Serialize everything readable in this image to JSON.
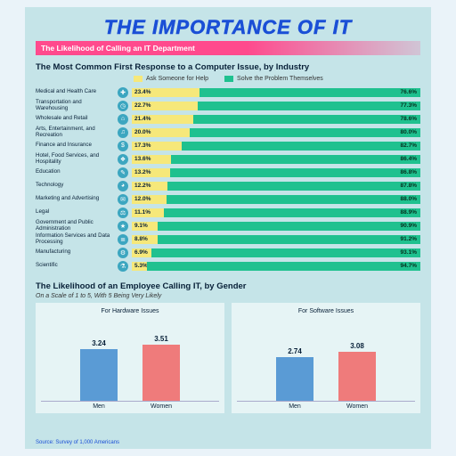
{
  "title": "THE IMPORTANCE OF IT",
  "subtitle": "The Likelihood of Calling an IT Department",
  "colors": {
    "page_bg": "#eaf3f9",
    "panel_bg": "#c5e4e8",
    "title": "#1a4fd6",
    "subtitle_band": "#ff4a8d",
    "ask_color": "#f6e87a",
    "solve_color": "#1fc18f",
    "icon_bg": "#3ca6c0",
    "men_bar": "#5a9bd5",
    "women_bar": "#ef7b7b",
    "gender_panel_bg": "#e6f4f5",
    "source": "#1a4fd6"
  },
  "section1": {
    "title": "The Most Common First Response to a Computer Issue, by Industry",
    "legend": {
      "ask": "Ask Someone for Help",
      "solve": "Solve the Problem Themselves"
    },
    "rows": [
      {
        "label": "Medical and Health Care",
        "icon": "✚",
        "ask": 23.4,
        "solve": 76.6
      },
      {
        "label": "Transportation and Warehousing",
        "icon": "◷",
        "ask": 22.7,
        "solve": 77.3
      },
      {
        "label": "Wholesale and Retail",
        "icon": "⌂",
        "ask": 21.4,
        "solve": 78.6
      },
      {
        "label": "Arts, Entertainment, and Recreation",
        "icon": "♫",
        "ask": 20.0,
        "solve": 80.0
      },
      {
        "label": "Finance and Insurance",
        "icon": "$",
        "ask": 17.3,
        "solve": 82.7
      },
      {
        "label": "Hotel, Food Services, and Hospitality",
        "icon": "❖",
        "ask": 13.6,
        "solve": 86.4
      },
      {
        "label": "Education",
        "icon": "✎",
        "ask": 13.2,
        "solve": 86.8
      },
      {
        "label": "Technology",
        "icon": "◕",
        "ask": 12.2,
        "solve": 87.8
      },
      {
        "label": "Marketing and Advertising",
        "icon": "✉",
        "ask": 12.0,
        "solve": 88.0
      },
      {
        "label": "Legal",
        "icon": "⚖",
        "ask": 11.1,
        "solve": 88.9
      },
      {
        "label": "Government and Public Administration",
        "icon": "★",
        "ask": 9.1,
        "solve": 90.9
      },
      {
        "label": "Information Services and Data Processing",
        "icon": "≣",
        "ask": 8.8,
        "solve": 91.2
      },
      {
        "label": "Manufacturing",
        "icon": "⚙",
        "ask": 6.9,
        "solve": 93.1
      },
      {
        "label": "Scientific",
        "icon": "⚗",
        "ask": 5.3,
        "solve": 94.7
      }
    ]
  },
  "section2": {
    "title": "The Likelihood of an Employee Calling IT, by Gender",
    "subtitle": "On a Scale of 1 to 5, With 5 Being Very Likely",
    "ymax": 5,
    "charts": [
      {
        "title": "For Hardware Issues",
        "bars": [
          {
            "label": "Men",
            "value": 3.24,
            "color_key": "men_bar"
          },
          {
            "label": "Women",
            "value": 3.51,
            "color_key": "women_bar"
          }
        ]
      },
      {
        "title": "For Software Issues",
        "bars": [
          {
            "label": "Men",
            "value": 2.74,
            "color_key": "men_bar"
          },
          {
            "label": "Women",
            "value": 3.08,
            "color_key": "women_bar"
          }
        ]
      }
    ]
  },
  "source": "Source: Survey of 1,000 Americans"
}
